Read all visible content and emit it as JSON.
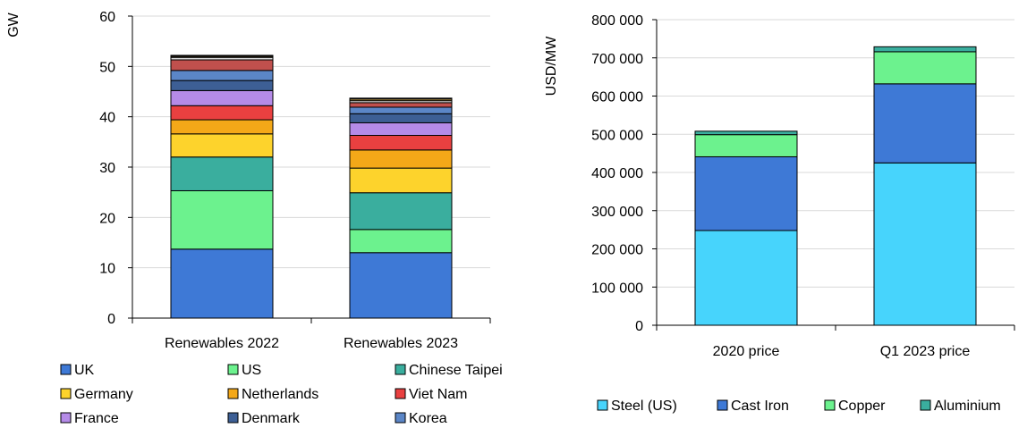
{
  "chart_data": [
    {
      "type": "bar",
      "stacked": true,
      "ylabel": "GW",
      "ylim": [
        0,
        60
      ],
      "yticks": [
        0,
        10,
        20,
        30,
        40,
        50,
        60
      ],
      "ytick_labels": [
        "0",
        "10",
        "20",
        "30",
        "40",
        "50",
        "60"
      ],
      "categories": [
        "Renewables 2022",
        "Renewables 2023"
      ],
      "grid": true,
      "legend_position": "bottom",
      "series": [
        {
          "name": "UK",
          "values": [
            13.7,
            13.0
          ],
          "color": "#3E79D6"
        },
        {
          "name": "US",
          "values": [
            11.6,
            4.6
          ],
          "color": "#6CF28E"
        },
        {
          "name": "Chinese Taipei",
          "values": [
            6.7,
            7.3
          ],
          "color": "#3AAE9E"
        },
        {
          "name": "Germany",
          "values": [
            4.6,
            4.9
          ],
          "color": "#FDD32C"
        },
        {
          "name": "Netherlands",
          "values": [
            2.8,
            3.6
          ],
          "color": "#F4A818"
        },
        {
          "name": "Viet Nam",
          "values": [
            2.8,
            2.9
          ],
          "color": "#E94040"
        },
        {
          "name": "France",
          "values": [
            3.0,
            2.5
          ],
          "color": "#B58BE8"
        },
        {
          "name": "Denmark",
          "values": [
            2.0,
            1.8
          ],
          "color": "#3D5F95"
        },
        {
          "name": "Korea",
          "values": [
            2.0,
            1.3
          ],
          "color": "#5B86C7"
        },
        {
          "name": "",
          "values": [
            2.1,
            0.9
          ],
          "color": "#C0504D"
        },
        {
          "name": "",
          "values": [
            0.5,
            0.4
          ],
          "color": "#D9D9D9"
        },
        {
          "name": "",
          "values": [
            0.2,
            0.3
          ],
          "color": "#F0C45C"
        },
        {
          "name": "",
          "values": [
            0.2,
            0.2
          ],
          "color": "#303030"
        }
      ]
    },
    {
      "type": "bar",
      "stacked": true,
      "ylabel": "USD/MW",
      "ylim": [
        0,
        800000
      ],
      "yticks": [
        0,
        100000,
        200000,
        300000,
        400000,
        500000,
        600000,
        700000,
        800000
      ],
      "ytick_labels": [
        "0",
        "100 000",
        "200 000",
        "300 000",
        "400 000",
        "500 000",
        "600 000",
        "700 000",
        "800 000"
      ],
      "categories": [
        "2020 price",
        "Q1 2023 price"
      ],
      "grid": true,
      "legend_position": "bottom",
      "series": [
        {
          "name": "Steel (US)",
          "values": [
            248000,
            425000
          ],
          "color": "#47D4FC"
        },
        {
          "name": "Cast Iron",
          "values": [
            193000,
            207000
          ],
          "color": "#3E79D6"
        },
        {
          "name": "Copper",
          "values": [
            58000,
            84000
          ],
          "color": "#6CF28E"
        },
        {
          "name": "Aluminium",
          "values": [
            9000,
            13000
          ],
          "color": "#3AAE9E"
        }
      ]
    }
  ]
}
